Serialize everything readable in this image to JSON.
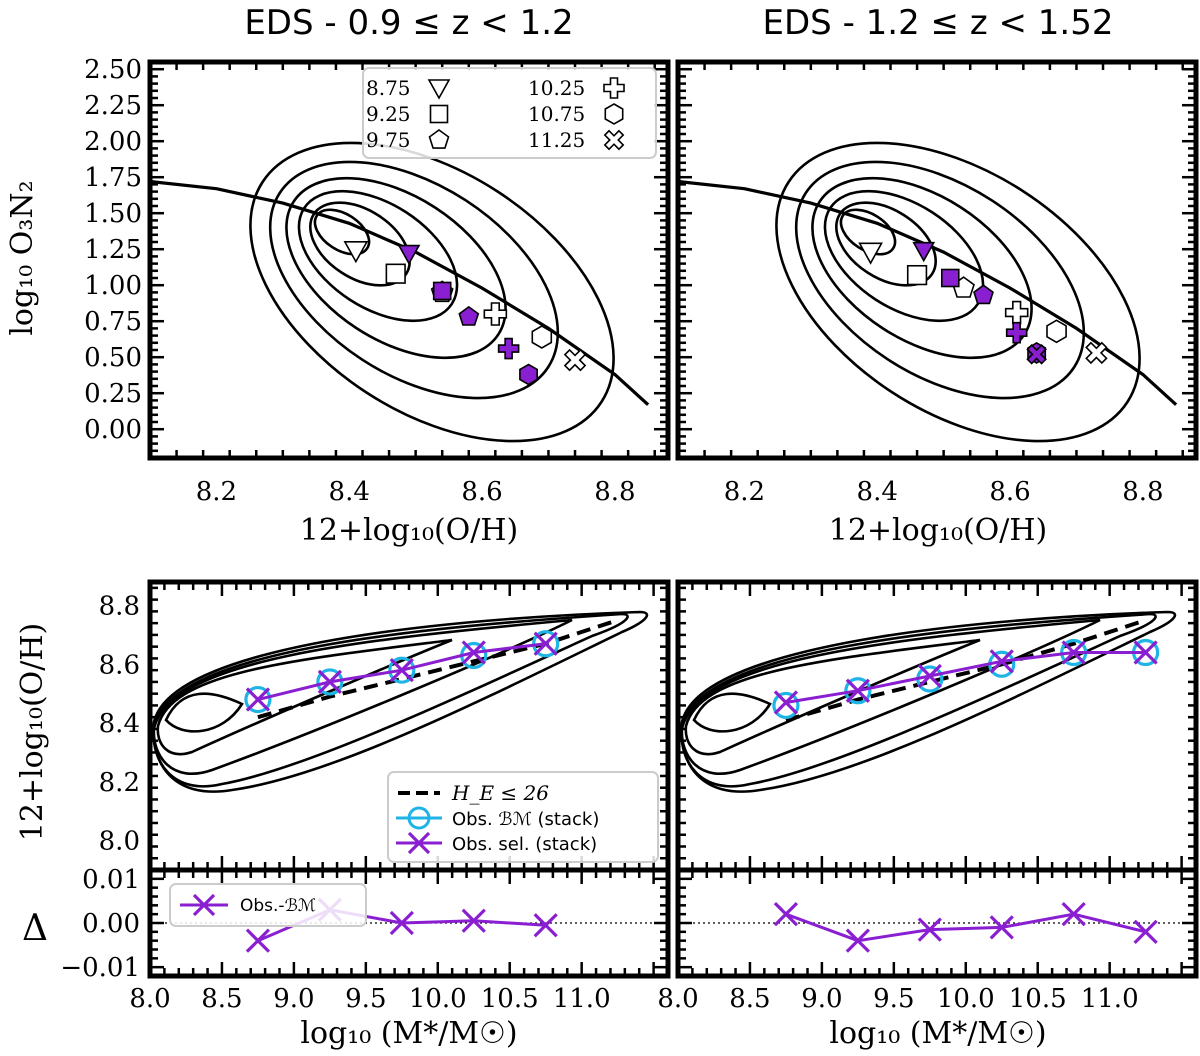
{
  "figure": {
    "titles": [
      "EDS - 0.9 ≤ z < 1.2",
      "EDS - 1.2 ≤ z < 1.52"
    ],
    "colors": {
      "purple": "#8a1fd1",
      "cyan": "#1fb4e6",
      "black": "#000000"
    }
  },
  "chart_data": [
    {
      "type": "scatter",
      "title": "EDS - 0.9 ≤ z < 1.2",
      "xlabel": "12+log₁₀(O/H)",
      "ylabel": "log₁₀ O₃N₂",
      "xlim": [
        8.1,
        8.88
      ],
      "ylim": [
        -0.2,
        2.55
      ],
      "xticks": [
        "8.2",
        "8.4",
        "8.6",
        "8.8"
      ],
      "yticks": [
        "0.00",
        "0.25",
        "0.50",
        "0.75",
        "1.00",
        "1.25",
        "1.50",
        "1.75",
        "2.00",
        "2.25",
        "2.50"
      ],
      "legend": {
        "position": "top-right",
        "entries": [
          {
            "label": "8.75",
            "marker": "triangle-down"
          },
          {
            "label": "9.25",
            "marker": "square"
          },
          {
            "label": "9.75",
            "marker": "pentagon"
          },
          {
            "label": "10.25",
            "marker": "plus"
          },
          {
            "label": "10.75",
            "marker": "hexagon"
          },
          {
            "label": "11.25",
            "marker": "x-filled"
          }
        ]
      },
      "curve": {
        "x": [
          8.1,
          8.2,
          8.3,
          8.4,
          8.5,
          8.6,
          8.7,
          8.8,
          8.85
        ],
        "y": [
          1.72,
          1.67,
          1.57,
          1.43,
          1.23,
          0.98,
          0.7,
          0.38,
          0.17
        ]
      },
      "series": [
        {
          "name": "open markers",
          "points": [
            {
              "mass": "8.75",
              "x": 8.41,
              "y": 1.24,
              "marker": "triangle-down"
            },
            {
              "mass": "9.25",
              "x": 8.47,
              "y": 1.08,
              "marker": "square"
            },
            {
              "mass": "9.75",
              "x": 8.54,
              "y": 0.95,
              "marker": "pentagon"
            },
            {
              "mass": "10.25",
              "x": 8.62,
              "y": 0.8,
              "marker": "plus"
            },
            {
              "mass": "10.75",
              "x": 8.69,
              "y": 0.64,
              "marker": "hexagon"
            },
            {
              "mass": "11.25",
              "x": 8.74,
              "y": 0.48,
              "marker": "x-filled"
            }
          ]
        },
        {
          "name": "purple markers",
          "points": [
            {
              "mass": "8.75",
              "x": 8.49,
              "y": 1.22,
              "marker": "triangle-down"
            },
            {
              "mass": "9.25",
              "x": 8.54,
              "y": 0.96,
              "marker": "square"
            },
            {
              "mass": "9.75",
              "x": 8.58,
              "y": 0.78,
              "marker": "pentagon"
            },
            {
              "mass": "10.25",
              "x": 8.64,
              "y": 0.56,
              "marker": "plus"
            },
            {
              "mass": "10.75",
              "x": 8.67,
              "y": 0.38,
              "marker": "hexagon"
            }
          ]
        }
      ]
    },
    {
      "type": "scatter",
      "title": "EDS - 1.2 ≤ z < 1.52",
      "xlabel": "12+log₁₀(O/H)",
      "ylabel": "",
      "xlim": [
        8.1,
        8.88
      ],
      "ylim": [
        -0.2,
        2.55
      ],
      "xticks": [
        "8.2",
        "8.4",
        "8.6",
        "8.8"
      ],
      "curve": {
        "x": [
          8.1,
          8.2,
          8.3,
          8.4,
          8.5,
          8.6,
          8.7,
          8.8,
          8.85
        ],
        "y": [
          1.72,
          1.67,
          1.57,
          1.43,
          1.23,
          0.98,
          0.7,
          0.38,
          0.17
        ]
      },
      "series": [
        {
          "name": "open markers",
          "points": [
            {
              "mass": "8.75",
              "x": 8.39,
              "y": 1.23,
              "marker": "triangle-down"
            },
            {
              "mass": "9.25",
              "x": 8.46,
              "y": 1.07,
              "marker": "square"
            },
            {
              "mass": "9.75",
              "x": 8.53,
              "y": 0.98,
              "marker": "pentagon"
            },
            {
              "mass": "10.25",
              "x": 8.61,
              "y": 0.81,
              "marker": "plus"
            },
            {
              "mass": "10.75",
              "x": 8.67,
              "y": 0.68,
              "marker": "hexagon"
            },
            {
              "mass": "11.25",
              "x": 8.73,
              "y": 0.53,
              "marker": "x-filled"
            }
          ]
        },
        {
          "name": "purple markers",
          "points": [
            {
              "mass": "8.75",
              "x": 8.47,
              "y": 1.24,
              "marker": "triangle-down"
            },
            {
              "mass": "9.25",
              "x": 8.51,
              "y": 1.05,
              "marker": "square"
            },
            {
              "mass": "9.75",
              "x": 8.56,
              "y": 0.93,
              "marker": "pentagon"
            },
            {
              "mass": "10.25",
              "x": 8.61,
              "y": 0.67,
              "marker": "plus"
            },
            {
              "mass": "10.75",
              "x": 8.64,
              "y": 0.53,
              "marker": "hexagon"
            },
            {
              "mass": "11.25",
              "x": 8.64,
              "y": 0.52,
              "marker": "x-filled"
            }
          ]
        }
      ]
    },
    {
      "type": "line",
      "xlabel": "log₁₀ (M*/M☉)",
      "ylabel": "12+log₁₀(O/H)",
      "xlim": [
        8.0,
        11.6
      ],
      "ylim": [
        7.9,
        8.88
      ],
      "yticks": [
        "8.0",
        "8.2",
        "8.4",
        "8.6",
        "8.8"
      ],
      "legend": {
        "position": "lower-right",
        "entries": [
          {
            "label": "H_E ≤ 26",
            "style": "dashed-black"
          },
          {
            "label": "Obs. ℬℳ (stack)",
            "style": "cyan-circle"
          },
          {
            "label": "Obs. sel. (stack)",
            "style": "purple-x"
          }
        ]
      },
      "series": [
        {
          "name": "H_E ≤ 26",
          "x": [
            8.75,
            9.25,
            9.75,
            10.25,
            10.75,
            11.25
          ],
          "y": [
            8.42,
            8.49,
            8.55,
            8.61,
            8.67,
            8.75
          ]
        },
        {
          "name": "Obs. ℬℳ (stack)",
          "x": [
            8.75,
            9.25,
            9.75,
            10.25,
            10.75
          ],
          "y": [
            8.48,
            8.54,
            8.58,
            8.63,
            8.67
          ]
        },
        {
          "name": "Obs. sel. (stack)",
          "x": [
            8.75,
            9.25,
            9.75,
            10.25,
            10.75
          ],
          "y": [
            8.48,
            8.54,
            8.58,
            8.64,
            8.67
          ]
        }
      ]
    },
    {
      "type": "line",
      "xlabel": "",
      "ylabel": "",
      "xlim": [
        8.0,
        11.6
      ],
      "ylim": [
        7.9,
        8.88
      ],
      "series": [
        {
          "name": "H_E ≤ 26",
          "x": [
            8.75,
            9.25,
            9.75,
            10.25,
            10.75,
            11.25
          ],
          "y": [
            8.41,
            8.48,
            8.54,
            8.6,
            8.67,
            8.75
          ]
        },
        {
          "name": "Obs. ℬℳ (stack)",
          "x": [
            8.75,
            9.25,
            9.75,
            10.25,
            10.75,
            11.25
          ],
          "y": [
            8.46,
            8.51,
            8.55,
            8.6,
            8.64,
            8.64
          ]
        },
        {
          "name": "Obs. sel. (stack)",
          "x": [
            8.75,
            9.25,
            9.75,
            10.25,
            10.75,
            11.25
          ],
          "y": [
            8.47,
            8.51,
            8.56,
            8.61,
            8.64,
            8.64
          ]
        }
      ]
    },
    {
      "type": "line",
      "xlabel": "log₁₀ (M*/M☉)",
      "ylabel": "Δ",
      "xlim": [
        8.0,
        11.6
      ],
      "ylim": [
        -0.012,
        0.012
      ],
      "xticks": [
        "8.0",
        "8.5",
        "9.0",
        "9.5",
        "10.0",
        "10.5",
        "11.0"
      ],
      "yticks": [
        "−0.01",
        "0.00",
        "0.01"
      ],
      "legend": {
        "position": "top-left",
        "entries": [
          {
            "label": "Obs.-ℬℳ",
            "style": "purple-x"
          }
        ]
      },
      "series": [
        {
          "name": "Obs.-ℬℳ",
          "x": [
            8.75,
            9.25,
            9.75,
            10.25,
            10.75
          ],
          "y": [
            -0.004,
            0.003,
            0.0,
            0.0005,
            -0.0005
          ]
        }
      ]
    },
    {
      "type": "line",
      "xlabel": "log₁₀ (M*/M☉)",
      "ylabel": "",
      "xlim": [
        8.0,
        11.6
      ],
      "ylim": [
        -0.012,
        0.012
      ],
      "xticks": [
        "8.0",
        "8.5",
        "9.0",
        "9.5",
        "10.0",
        "10.5",
        "11.0"
      ],
      "series": [
        {
          "name": "Obs.-ℬℳ",
          "x": [
            8.75,
            9.25,
            9.75,
            10.25,
            10.75,
            11.25
          ],
          "y": [
            0.002,
            -0.004,
            -0.0015,
            -0.001,
            0.002,
            -0.002
          ]
        }
      ]
    }
  ]
}
